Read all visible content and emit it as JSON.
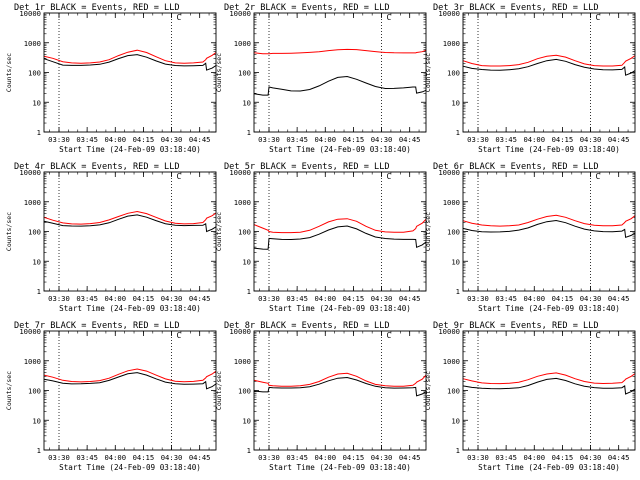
{
  "colors": {
    "events": "#000000",
    "lld": "#ff0000",
    "background": "#ffffff",
    "axis": "#000000"
  },
  "chart_data": [
    {
      "type": "line",
      "title": "Det 1r BLACK = Events, RED = LLD",
      "ylabel": "Counts/sec",
      "xlabel": "Start Time (24-Feb-09 03:18:40)",
      "ylim": [
        1,
        10000
      ],
      "yscale": "log",
      "yticks": [
        "1",
        "10",
        "100",
        "1000",
        "10000"
      ],
      "xticks": [
        "03:30",
        "03:45",
        "04:00",
        "04:15",
        "04:30",
        "04:45"
      ],
      "xlim_minutes": [
        3.3,
        95
      ],
      "grid": false,
      "markers": {
        "dotted_lines_minutes": [
          11.3,
          71.3
        ],
        "corner_marker_text": "C"
      },
      "x_minutes": [
        3.3,
        8,
        13.3,
        18,
        23,
        28,
        33,
        38,
        43,
        48,
        53,
        58,
        63,
        68,
        73.3,
        78,
        83,
        88,
        89.5,
        90,
        93,
        95
      ],
      "series": [
        {
          "name": "BLACK",
          "values": [
            290,
            230,
            175,
            170,
            170,
            175,
            185,
            220,
            290,
            370,
            400,
            330,
            250,
            195,
            175,
            170,
            172,
            175,
            205,
            120,
            140,
            170
          ]
        },
        {
          "name": "RED",
          "values": [
            350,
            300,
            230,
            210,
            205,
            210,
            225,
            270,
            370,
            480,
            560,
            470,
            340,
            250,
            210,
            205,
            210,
            225,
            270,
            300,
            380,
            470
          ]
        }
      ]
    },
    {
      "type": "line",
      "title": "Det 2r BLACK = Events, RED = LLD",
      "ylabel": "Counts/sec",
      "xlabel": "Start Time (24-Feb-09 03:18:40)",
      "ylim": [
        1,
        10000
      ],
      "yscale": "log",
      "yticks": [
        "1",
        "10",
        "100",
        "1000",
        "10000"
      ],
      "xticks": [
        "03:30",
        "03:45",
        "04:00",
        "04:15",
        "04:30",
        "04:45"
      ],
      "xlim_minutes": [
        3.3,
        95
      ],
      "grid": false,
      "markers": {
        "dotted_lines_minutes": [
          11.3,
          71.3
        ],
        "corner_marker_text": "C"
      },
      "x_minutes": [
        3.3,
        8,
        10.8,
        11.3,
        13.3,
        18,
        23,
        28,
        33,
        38,
        43,
        48,
        53,
        58,
        63,
        68,
        73.3,
        78,
        83,
        86,
        88,
        89.5,
        90,
        93,
        95
      ],
      "series": [
        {
          "name": "BLACK",
          "values": [
            19,
            17,
            17,
            32,
            30,
            27,
            24,
            24,
            27,
            36,
            52,
            70,
            75,
            60,
            45,
            34,
            29,
            29,
            30,
            31,
            32,
            32,
            20,
            22,
            25
          ]
        },
        {
          "name": "RED",
          "values": [
            460,
            430,
            430,
            430,
            440,
            440,
            445,
            455,
            475,
            500,
            545,
            580,
            600,
            590,
            545,
            505,
            470,
            460,
            455,
            455,
            455,
            455,
            470,
            500,
            560
          ]
        }
      ]
    },
    {
      "type": "line",
      "title": "Det 3r BLACK = Events, RED = LLD",
      "ylabel": "Counts/sec",
      "xlabel": "Start Time (24-Feb-09 03:18:40)",
      "ylim": [
        1,
        10000
      ],
      "yscale": "log",
      "yticks": [
        "1",
        "10",
        "100",
        "1000",
        "10000"
      ],
      "xticks": [
        "03:30",
        "03:45",
        "04:00",
        "04:15",
        "04:30",
        "04:45"
      ],
      "xlim_minutes": [
        3.3,
        95
      ],
      "grid": false,
      "markers": {
        "dotted_lines_minutes": [
          11.3,
          71.3
        ],
        "corner_marker_text": "C"
      },
      "x_minutes": [
        3.3,
        8,
        13.3,
        18,
        23,
        28,
        33,
        38,
        43,
        48,
        53,
        58,
        63,
        68,
        73.3,
        78,
        83,
        88,
        89.5,
        90,
        93,
        95
      ],
      "series": [
        {
          "name": "BLACK",
          "values": [
            160,
            135,
            125,
            120,
            120,
            125,
            135,
            160,
            205,
            255,
            280,
            240,
            185,
            150,
            130,
            122,
            120,
            125,
            150,
            80,
            95,
            115
          ]
        },
        {
          "name": "RED",
          "values": [
            250,
            200,
            170,
            165,
            165,
            170,
            185,
            220,
            290,
            350,
            380,
            330,
            250,
            195,
            170,
            165,
            165,
            175,
            220,
            240,
            300,
            370
          ]
        }
      ]
    },
    {
      "type": "line",
      "title": "Det 4r BLACK = Events, RED = LLD",
      "ylabel": "Counts/sec",
      "xlabel": "Start Time (24-Feb-09 03:18:40)",
      "ylim": [
        1,
        10000
      ],
      "yscale": "log",
      "yticks": [
        "1",
        "10",
        "100",
        "1000",
        "10000"
      ],
      "xticks": [
        "03:30",
        "03:45",
        "04:00",
        "04:15",
        "04:30",
        "04:45"
      ],
      "xlim_minutes": [
        3.3,
        95
      ],
      "grid": false,
      "markers": {
        "dotted_lines_minutes": [
          11.3,
          71.3
        ],
        "corner_marker_text": "C"
      },
      "x_minutes": [
        3.3,
        8,
        13.3,
        18,
        23,
        28,
        33,
        38,
        43,
        48,
        53,
        58,
        63,
        68,
        73.3,
        78,
        83,
        88,
        89.5,
        90,
        93,
        95
      ],
      "series": [
        {
          "name": "BLACK",
          "values": [
            220,
            190,
            160,
            155,
            155,
            160,
            170,
            200,
            260,
            330,
            360,
            300,
            230,
            180,
            160,
            155,
            157,
            160,
            180,
            100,
            120,
            145
          ]
        },
        {
          "name": "RED",
          "values": [
            300,
            240,
            195,
            180,
            178,
            185,
            200,
            245,
            320,
            410,
            470,
            400,
            300,
            225,
            190,
            180,
            185,
            200,
            250,
            280,
            340,
            420
          ]
        }
      ]
    },
    {
      "type": "line",
      "title": "Det 5r BLACK = Events, RED = LLD",
      "ylabel": "Counts/sec",
      "xlabel": "Start Time (24-Feb-09 03:18:40)",
      "ylim": [
        1,
        10000
      ],
      "yscale": "log",
      "yticks": [
        "1",
        "10",
        "100",
        "1000",
        "10000"
      ],
      "xticks": [
        "03:30",
        "03:45",
        "04:00",
        "04:15",
        "04:30",
        "04:45"
      ],
      "xlim_minutes": [
        3.3,
        95
      ],
      "grid": false,
      "markers": {
        "dotted_lines_minutes": [
          11.3,
          71.3
        ],
        "corner_marker_text": "C"
      },
      "x_minutes": [
        3.3,
        8,
        10.8,
        11.3,
        13.3,
        18,
        23,
        28,
        33,
        38,
        43,
        48,
        53,
        58,
        63,
        68,
        73.3,
        78,
        83,
        88,
        89.5,
        90,
        93,
        95
      ],
      "series": [
        {
          "name": "BLACK",
          "values": [
            28,
            26,
            26,
            60,
            58,
            55,
            54,
            56,
            62,
            80,
            110,
            140,
            150,
            120,
            85,
            65,
            58,
            56,
            55,
            55,
            55,
            30,
            36,
            45
          ]
        },
        {
          "name": "RED",
          "values": [
            170,
            130,
            110,
            100,
            95,
            92,
            92,
            95,
            110,
            150,
            210,
            260,
            270,
            220,
            150,
            110,
            97,
            94,
            95,
            105,
            125,
            150,
            190,
            260
          ]
        }
      ]
    },
    {
      "type": "line",
      "title": "Det 6r BLACK = Events, RED = LLD",
      "ylabel": "Counts/sec",
      "xlabel": "Start Time (24-Feb-09 03:18:40)",
      "ylim": [
        1,
        10000
      ],
      "yscale": "log",
      "yticks": [
        "1",
        "10",
        "100",
        "1000",
        "10000"
      ],
      "xticks": [
        "03:30",
        "03:45",
        "04:00",
        "04:15",
        "04:30",
        "04:45"
      ],
      "xlim_minutes": [
        3.3,
        95
      ],
      "grid": false,
      "markers": {
        "dotted_lines_minutes": [
          11.3,
          71.3
        ],
        "corner_marker_text": "C"
      },
      "x_minutes": [
        3.3,
        8,
        13.3,
        18,
        23,
        28,
        33,
        38,
        43,
        48,
        53,
        58,
        63,
        68,
        73.3,
        78,
        83,
        88,
        89.5,
        90,
        93,
        95
      ],
      "series": [
        {
          "name": "BLACK",
          "values": [
            130,
            110,
            100,
            97,
            97,
            100,
            110,
            130,
            170,
            210,
            230,
            195,
            150,
            120,
            105,
            100,
            100,
            105,
            120,
            65,
            75,
            90
          ]
        },
        {
          "name": "RED",
          "values": [
            230,
            190,
            165,
            155,
            152,
            155,
            165,
            200,
            260,
            320,
            350,
            300,
            230,
            185,
            162,
            155,
            156,
            165,
            200,
            220,
            270,
            340
          ]
        }
      ]
    },
    {
      "type": "line",
      "title": "Det 7r BLACK = Events, RED = LLD",
      "ylabel": "Counts/sec",
      "xlabel": "Start Time (24-Feb-09 03:18:40)",
      "ylim": [
        1,
        10000
      ],
      "yscale": "log",
      "yticks": [
        "1",
        "10",
        "100",
        "1000",
        "10000"
      ],
      "xticks": [
        "03:30",
        "03:45",
        "04:00",
        "04:15",
        "04:30",
        "04:45"
      ],
      "xlim_minutes": [
        3.3,
        95
      ],
      "grid": false,
      "markers": {
        "dotted_lines_minutes": [
          11.3,
          71.3
        ],
        "corner_marker_text": "C"
      },
      "x_minutes": [
        3.3,
        8,
        13.3,
        18,
        23,
        28,
        33,
        38,
        43,
        48,
        53,
        58,
        63,
        68,
        73.3,
        78,
        83,
        88,
        89.5,
        90,
        93,
        95
      ],
      "series": [
        {
          "name": "BLACK",
          "values": [
            240,
            210,
            175,
            165,
            165,
            170,
            180,
            215,
            280,
            360,
            400,
            330,
            250,
            195,
            172,
            165,
            167,
            172,
            200,
            115,
            135,
            165
          ]
        },
        {
          "name": "RED",
          "values": [
            330,
            280,
            220,
            200,
            195,
            200,
            215,
            260,
            350,
            460,
            530,
            450,
            330,
            245,
            205,
            198,
            203,
            220,
            265,
            290,
            360,
            450
          ]
        }
      ]
    },
    {
      "type": "line",
      "title": "Det 8r BLACK = Events, RED = LLD",
      "ylabel": "Counts/sec",
      "xlabel": "Start Time (24-Feb-09 03:18:40)",
      "ylim": [
        1,
        10000
      ],
      "yscale": "log",
      "yticks": [
        "1",
        "10",
        "100",
        "1000",
        "10000"
      ],
      "xticks": [
        "03:30",
        "03:45",
        "04:00",
        "04:15",
        "04:30",
        "04:45"
      ],
      "xlim_minutes": [
        3.3,
        95
      ],
      "grid": false,
      "markers": {
        "dotted_lines_minutes": [
          11.3,
          71.3
        ],
        "corner_marker_text": "C"
      },
      "x_minutes": [
        3.3,
        8,
        10.8,
        11.3,
        13.3,
        18,
        23,
        28,
        33,
        38,
        43,
        48,
        53,
        58,
        63,
        68,
        73.3,
        78,
        83,
        88,
        89.5,
        90,
        93,
        95
      ],
      "series": [
        {
          "name": "BLACK",
          "values": [
            95,
            88,
            88,
            125,
            122,
            120,
            120,
            123,
            135,
            165,
            215,
            265,
            280,
            230,
            175,
            140,
            125,
            120,
            120,
            122,
            125,
            65,
            75,
            90
          ]
        },
        {
          "name": "RED",
          "values": [
            220,
            190,
            175,
            150,
            145,
            140,
            140,
            145,
            160,
            200,
            280,
            360,
            380,
            300,
            210,
            160,
            145,
            140,
            140,
            150,
            175,
            190,
            240,
            330
          ]
        }
      ]
    },
    {
      "type": "line",
      "title": "Det 9r BLACK = Events, RED = LLD",
      "ylabel": "Counts/sec",
      "xlabel": "Start Time (24-Feb-09 03:18:40)",
      "ylim": [
        1,
        10000
      ],
      "yscale": "log",
      "yticks": [
        "1",
        "10",
        "100",
        "1000",
        "10000"
      ],
      "xticks": [
        "03:30",
        "03:45",
        "04:00",
        "04:15",
        "04:30",
        "04:45"
      ],
      "xlim_minutes": [
        3.3,
        95
      ],
      "grid": false,
      "markers": {
        "dotted_lines_minutes": [
          11.3,
          71.3
        ],
        "corner_marker_text": "C"
      },
      "x_minutes": [
        3.3,
        8,
        13.3,
        18,
        23,
        28,
        33,
        38,
        43,
        48,
        53,
        58,
        63,
        68,
        73.3,
        78,
        83,
        88,
        89.5,
        90,
        93,
        95
      ],
      "series": [
        {
          "name": "BLACK",
          "values": [
            140,
            125,
            118,
            115,
            115,
            118,
            125,
            150,
            195,
            240,
            260,
            220,
            170,
            140,
            125,
            118,
            118,
            122,
            140,
            75,
            90,
            110
          ]
        },
        {
          "name": "RED",
          "values": [
            250,
            210,
            180,
            172,
            170,
            175,
            190,
            230,
            300,
            360,
            390,
            330,
            250,
            200,
            178,
            172,
            174,
            185,
            220,
            240,
            300,
            370
          ]
        }
      ]
    }
  ]
}
